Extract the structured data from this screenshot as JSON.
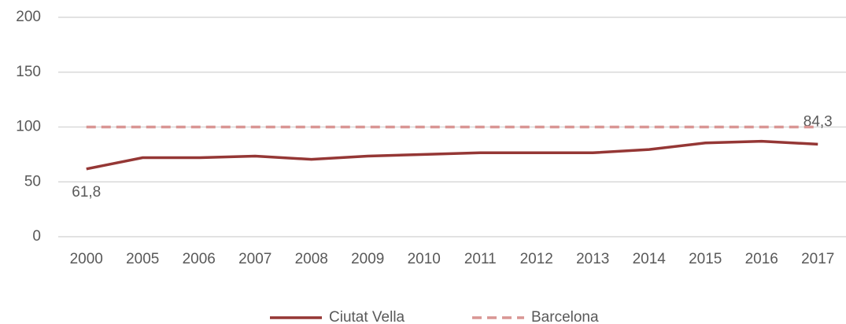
{
  "chart_data": {
    "type": "line",
    "categories": [
      "2000",
      "2005",
      "2006",
      "2007",
      "2008",
      "2009",
      "2010",
      "2011",
      "2012",
      "2013",
      "2014",
      "2015",
      "2016",
      "2017"
    ],
    "series": [
      {
        "name": "Ciutat Vella",
        "color": "#953735",
        "dash": false,
        "values": [
          61.8,
          72,
          72,
          73.5,
          70.5,
          73.5,
          75,
          76.5,
          76.5,
          76.5,
          79.5,
          85.5,
          87,
          84.3
        ],
        "value_labels": [
          "61,8",
          null,
          null,
          null,
          null,
          null,
          null,
          null,
          null,
          null,
          null,
          null,
          null,
          "84,3"
        ]
      },
      {
        "name": "Barcelona",
        "color": "#d99694",
        "dash": true,
        "values": [
          100,
          100,
          100,
          100,
          100,
          100,
          100,
          100,
          100,
          100,
          100,
          100,
          100,
          100
        ]
      }
    ],
    "ylim": [
      0,
      200
    ],
    "yticks": [
      0,
      50,
      100,
      150,
      200
    ],
    "grid": true,
    "legend": "bottom"
  }
}
